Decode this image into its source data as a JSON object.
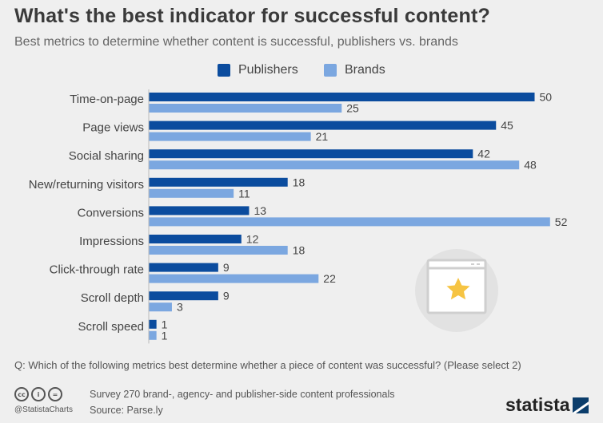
{
  "header": {
    "title": "What's the best indicator for successful content?",
    "subtitle": "Best metrics to determine whether content is successful, publishers vs. brands"
  },
  "legend": {
    "publishers": "Publishers",
    "brands": "Brands"
  },
  "colors": {
    "publishers": "#0b4c9e",
    "brands": "#7ba7e0"
  },
  "chart_data": {
    "type": "bar",
    "orientation": "horizontal",
    "categories": [
      "Time-on-page",
      "Page views",
      "Social sharing",
      "New/returning visitors",
      "Conversions",
      "Impressions",
      "Click-through rate",
      "Scroll depth",
      "Scroll speed"
    ],
    "series": [
      {
        "name": "Publishers",
        "values": [
          50,
          45,
          42,
          18,
          13,
          12,
          9,
          9,
          1
        ]
      },
      {
        "name": "Brands",
        "values": [
          25,
          21,
          48,
          11,
          52,
          18,
          22,
          3,
          1
        ]
      }
    ],
    "xlim": [
      0,
      52
    ],
    "grid": false,
    "legend_position": "top"
  },
  "footer": {
    "question": "Q: Which of the following metrics best determine whether a piece of content was successful? (Please select 2)",
    "survey": "Survey 270 brand-, agency- and publisher-side content professionals",
    "source": "Source: Parse.ly",
    "handle": "@StatistaCharts",
    "brand": "statista",
    "license_icons": [
      "cc-icon",
      "attribution-icon",
      "no-derivatives-icon"
    ]
  }
}
